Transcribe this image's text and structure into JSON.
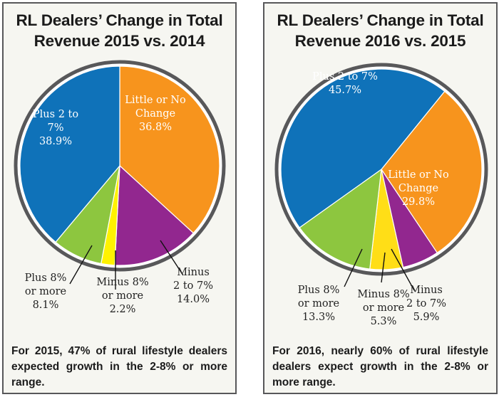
{
  "chart_data": [
    {
      "type": "pie",
      "title": "RL Dealers’ Change in Total Revenue 2015 vs. 2014",
      "title_lines": [
        "RL Dealers’ Change in Total",
        "Revenue 2015 vs. 2014"
      ],
      "start_angle_deg": 0,
      "direction": "clockwise",
      "slices": [
        {
          "label": "Little or No Change",
          "value": 36.8,
          "color": "#f7941d",
          "label_lines": [
            "Little or No",
            "Change",
            "36.8%"
          ],
          "label_position": "inside"
        },
        {
          "label": "Minus 2 to 7%",
          "value": 14.0,
          "color": "#92278f",
          "label_lines": [
            "Minus",
            "2 to 7%",
            "14.0%"
          ],
          "label_position": "outside"
        },
        {
          "label": "Minus 8% or more",
          "value": 2.2,
          "color": "#fff200",
          "label_lines": [
            "Minus 8%",
            "or more",
            "2.2%"
          ],
          "label_position": "outside"
        },
        {
          "label": "Plus 8% or more",
          "value": 8.1,
          "color": "#8dc63f",
          "label_lines": [
            "Plus 8%",
            "or more",
            "8.1%"
          ],
          "label_position": "outside"
        },
        {
          "label": "Plus 2 to 7%",
          "value": 38.9,
          "color": "#0f72b9",
          "label_lines": [
            "Plus 2 to",
            "7%",
            "38.9%"
          ],
          "label_position": "inside"
        }
      ],
      "caption": "For 2015, 47% of rural lifestyle dealers expected growth in the 2-8% or more range."
    },
    {
      "type": "pie",
      "title": "RL Dealers’ Change in Total Revenue 2016 vs. 2015",
      "title_lines": [
        "RL Dealers’ Change in Total",
        "Revenue 2016 vs. 2015"
      ],
      "start_angle_deg": 39,
      "direction": "clockwise",
      "slices": [
        {
          "label": "Little or No Change",
          "value": 29.8,
          "color": "#f7941d",
          "label_lines": [
            "Little or No",
            "Change",
            "29.8%"
          ],
          "label_position": "inside"
        },
        {
          "label": "Minus 2 to 7%",
          "value": 5.9,
          "color": "#92278f",
          "label_lines": [
            "Minus",
            "2 to 7%",
            "5.9%"
          ],
          "label_position": "outside"
        },
        {
          "label": "Minus 8% or more",
          "value": 5.3,
          "color": "#ffde17",
          "label_lines": [
            "Minus 8%",
            "or more",
            "5.3%"
          ],
          "label_position": "outside"
        },
        {
          "label": "Plus 8% or more",
          "value": 13.3,
          "color": "#8dc63f",
          "label_lines": [
            "Plus 8%",
            "or more",
            "13.3%"
          ],
          "label_position": "outside"
        },
        {
          "label": "Plus 2 to 7%",
          "value": 45.7,
          "color": "#0f72b9",
          "label_lines": [
            "Plus 2 to 7%",
            "45.7%"
          ],
          "label_position": "inside"
        }
      ],
      "caption": "For 2016, nearly 60% of rural lifestyle dealers expect growth in the 2-8% or more range."
    }
  ],
  "colors": {
    "ring": "#58585a",
    "panel_bg": "#f6f6f1",
    "panel_border": "#58585a",
    "text": "#1b1b1b"
  }
}
